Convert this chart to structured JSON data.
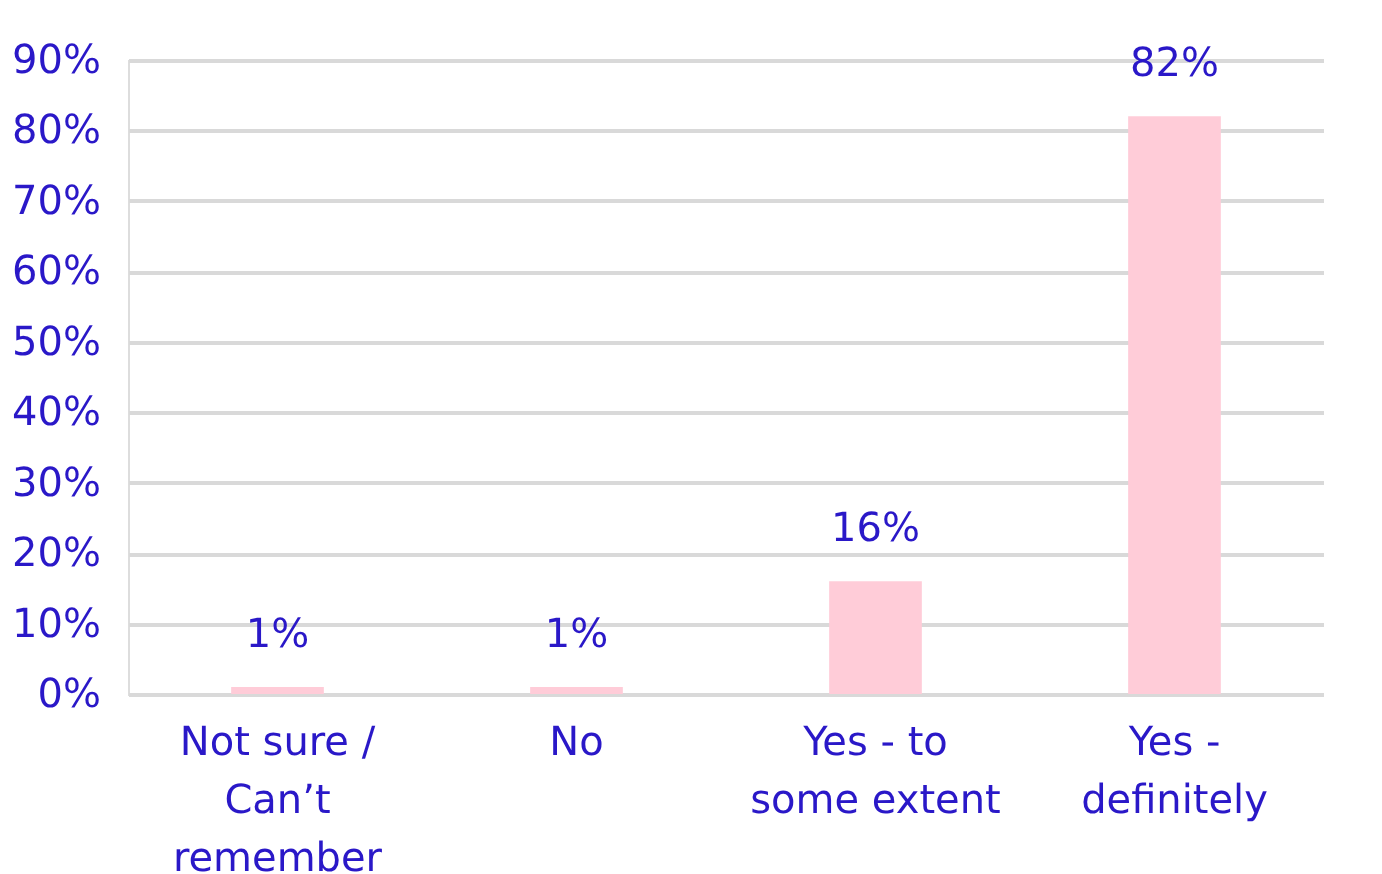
{
  "chart_data": {
    "type": "bar",
    "categories": [
      "Not sure / Can’t remember",
      "No",
      "Yes - to some extent",
      "Yes - definitely"
    ],
    "values": [
      1,
      1,
      16,
      82
    ],
    "value_labels": [
      "1%",
      "1%",
      "16%",
      "82%"
    ],
    "color": "#ffccd8",
    "ylim": [
      0,
      90
    ],
    "yticks": [
      {
        "value": 0,
        "label": "0%"
      },
      {
        "value": 10,
        "label": "10%"
      },
      {
        "value": 20,
        "label": "20%"
      },
      {
        "value": 30,
        "label": "30%"
      },
      {
        "value": 40,
        "label": "40%"
      },
      {
        "value": 50,
        "label": "50%"
      },
      {
        "value": 60,
        "label": "60%"
      },
      {
        "value": 70,
        "label": "70%"
      },
      {
        "value": 80,
        "label": "80%"
      },
      {
        "value": 90,
        "label": "90%"
      }
    ],
    "grid": "y"
  }
}
